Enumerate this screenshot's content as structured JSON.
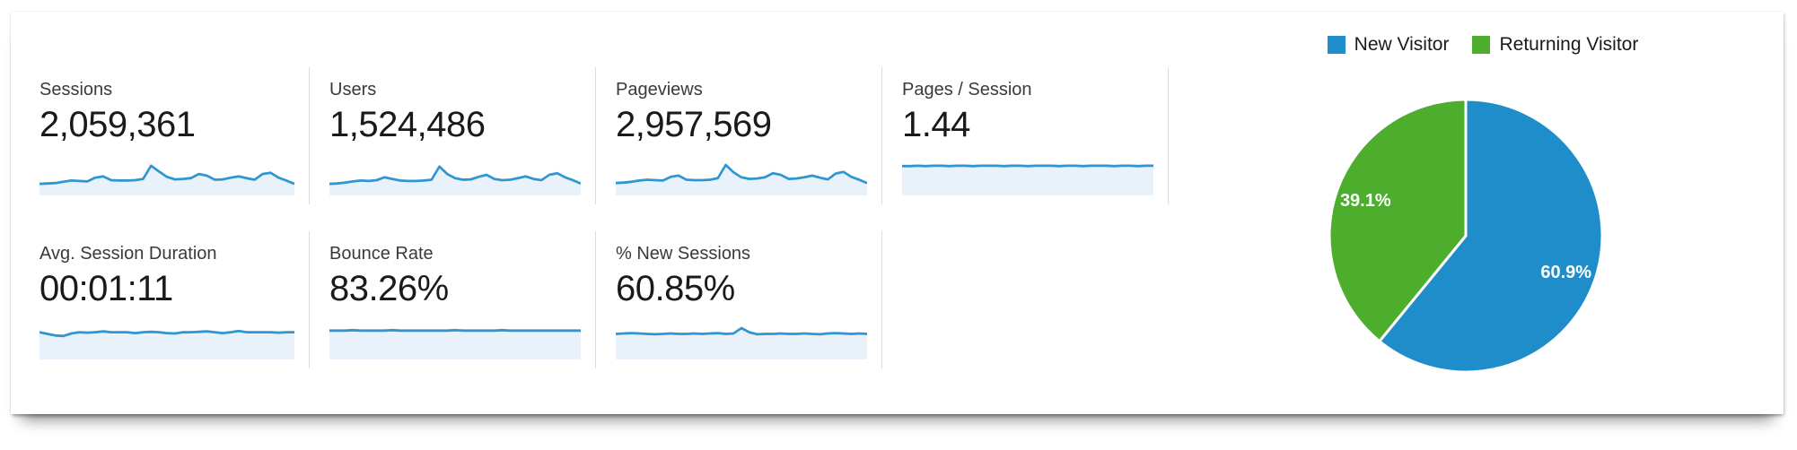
{
  "metrics": {
    "items": [
      {
        "label": "Sessions",
        "value": "2,059,361"
      },
      {
        "label": "Users",
        "value": "1,524,486"
      },
      {
        "label": "Pageviews",
        "value": "2,957,569"
      },
      {
        "label": "Pages / Session",
        "value": "1.44"
      },
      {
        "label": "Avg. Session Duration",
        "value": "00:01:11"
      },
      {
        "label": "Bounce Rate",
        "value": "83.26%"
      },
      {
        "label": "% New Sessions",
        "value": "60.85%"
      }
    ]
  },
  "colors": {
    "spark_line": "#3096d1",
    "spark_fill": "#e9f2fa",
    "pie_blue": "#1f8dc9",
    "pie_green": "#4cae2c",
    "divider": "#dcdcdc"
  },
  "chart_data": [
    {
      "type": "pie",
      "title": "New vs Returning Visitor share",
      "labels": [
        "New Visitor",
        "Returning Visitor"
      ],
      "values": [
        60.9,
        39.1
      ],
      "data_labels": [
        "60.9%",
        "39.1%"
      ],
      "colors": [
        "#1f8dc9",
        "#4cae2c"
      ],
      "legend_position": "top",
      "start_angle_deg": 0,
      "direction": "clockwise"
    },
    {
      "type": "area",
      "subtype": "sparkline-set",
      "note": "unlabeled daily-trend sparklines; values are estimated relative heights 0-100 (percent of spark area height)",
      "line_color": "#3096d1",
      "fill_color": "#e9f2fa",
      "series": [
        {
          "name": "Sessions",
          "values": [
            28,
            29,
            30,
            33,
            36,
            35,
            34,
            43,
            46,
            37,
            36,
            36,
            37,
            40,
            72,
            58,
            45,
            39,
            40,
            42,
            52,
            48,
            38,
            39,
            43,
            46,
            42,
            38,
            52,
            55,
            43,
            36,
            28
          ]
        },
        {
          "name": "Users",
          "values": [
            28,
            29,
            31,
            34,
            36,
            35,
            37,
            44,
            40,
            36,
            35,
            35,
            36,
            38,
            70,
            52,
            42,
            38,
            39,
            45,
            50,
            40,
            37,
            38,
            42,
            46,
            40,
            37,
            50,
            54,
            44,
            37,
            29
          ]
        },
        {
          "name": "Pageviews",
          "values": [
            30,
            31,
            33,
            36,
            38,
            37,
            36,
            45,
            48,
            38,
            37,
            37,
            38,
            42,
            74,
            56,
            44,
            40,
            41,
            44,
            54,
            50,
            40,
            41,
            44,
            48,
            43,
            39,
            53,
            57,
            45,
            38,
            30
          ]
        },
        {
          "name": "Pages / Session",
          "values": [
            71,
            71,
            72,
            71,
            72,
            72,
            71,
            72,
            72,
            71,
            72,
            72,
            72,
            71,
            72,
            72,
            71,
            72,
            72,
            72,
            71,
            72,
            72,
            71,
            72,
            72,
            72,
            71,
            72,
            72,
            71,
            72,
            72
          ]
        },
        {
          "name": "Avg. Session Duration",
          "values": [
            66,
            62,
            58,
            57,
            63,
            66,
            65,
            66,
            68,
            66,
            66,
            66,
            64,
            66,
            67,
            66,
            64,
            63,
            66,
            66,
            67,
            68,
            66,
            64,
            66,
            69,
            66,
            66,
            66,
            66,
            65,
            66,
            66
          ]
        },
        {
          "name": "Bounce Rate",
          "values": [
            70,
            70,
            70,
            71,
            70,
            70,
            70,
            70,
            71,
            70,
            70,
            70,
            70,
            70,
            70,
            70,
            71,
            70,
            70,
            70,
            70,
            70,
            71,
            70,
            70,
            70,
            70,
            70,
            70,
            70,
            70,
            70,
            70
          ]
        },
        {
          "name": "% New Sessions",
          "values": [
            62,
            63,
            64,
            63,
            62,
            61,
            62,
            63,
            62,
            62,
            63,
            62,
            63,
            64,
            62,
            63,
            76,
            66,
            61,
            62,
            62,
            63,
            62,
            62,
            63,
            62,
            61,
            63,
            64,
            63,
            62,
            63,
            62
          ]
        }
      ]
    }
  ]
}
